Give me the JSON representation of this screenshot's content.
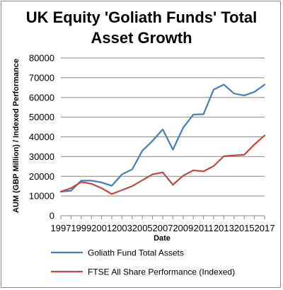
{
  "chart_data": {
    "type": "line",
    "title_lines": [
      "UK Equity 'Goliath Funds' Total",
      "Asset Growth"
    ],
    "xlabel": "Date",
    "ylabel": "AUM (GBP Million) / Indexed Performance",
    "x": [
      1997,
      1998,
      1999,
      2000,
      2001,
      2002,
      2003,
      2004,
      2005,
      2006,
      2007,
      2008,
      2009,
      2010,
      2011,
      2012,
      2013,
      2014,
      2015,
      2016,
      2017
    ],
    "x_tick_labels": [
      "1997",
      "1999",
      "2001",
      "2003",
      "2005",
      "2007",
      "2009",
      "2011",
      "2013",
      "2015",
      "2017"
    ],
    "y_tick_labels": [
      "0",
      "10000",
      "20000",
      "30000",
      "40000",
      "50000",
      "60000",
      "70000",
      "80000"
    ],
    "ylim": [
      0,
      80000
    ],
    "grid": "horizontal",
    "legend_position": "bottom",
    "series": [
      {
        "name": "Goliath Fund Total Assets",
        "color": "#4a7ebb",
        "values": [
          12200,
          12700,
          17800,
          17800,
          16900,
          15200,
          21000,
          23500,
          33000,
          38000,
          43800,
          33500,
          44600,
          51300,
          51500,
          64000,
          66500,
          62000,
          61000,
          62800,
          66500
        ]
      },
      {
        "name": "FTSE All Share Performance (Indexed)",
        "color": "#be4b48",
        "values": [
          12200,
          14000,
          17100,
          16200,
          14000,
          11000,
          13000,
          15000,
          18000,
          21000,
          22000,
          15700,
          20300,
          23000,
          22500,
          25200,
          30200,
          30600,
          30900,
          36200,
          40700
        ]
      }
    ]
  }
}
